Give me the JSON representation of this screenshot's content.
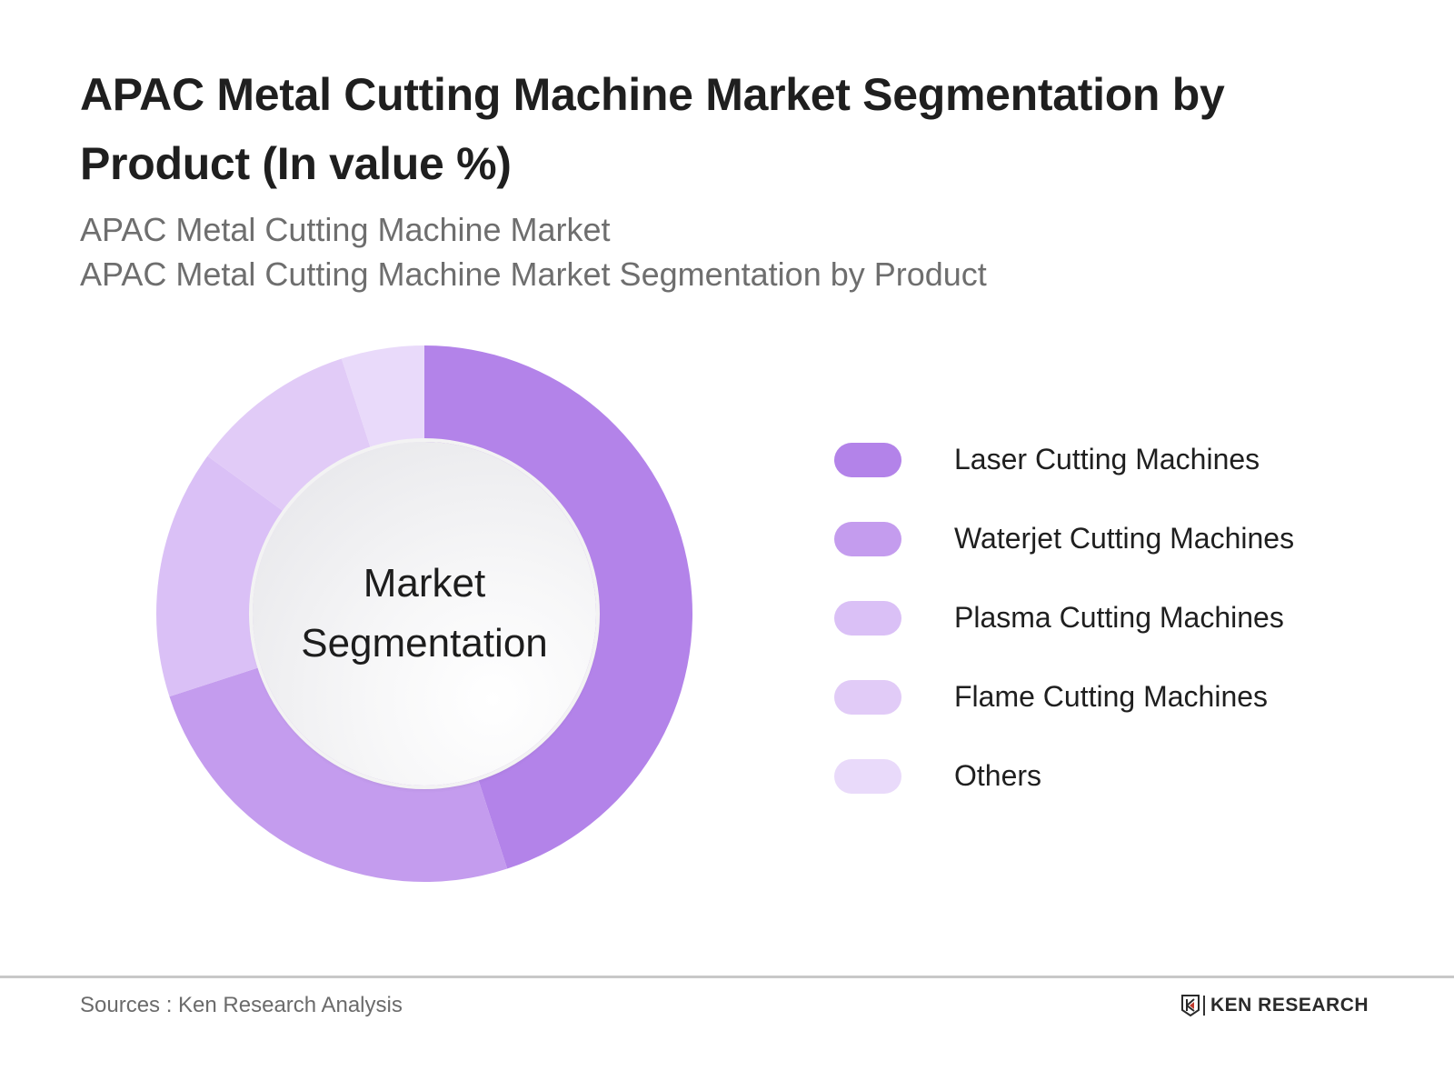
{
  "header": {
    "title": "APAC Metal Cutting Machine Market Segmentation by Product (In value %)",
    "subtitle_1": "APAC Metal Cutting Machine Market",
    "subtitle_2": "APAC Metal Cutting Machine Market Segmentation by Product"
  },
  "donut": {
    "center_label_1": "Market",
    "center_label_2": "Segmentation"
  },
  "legend": {
    "items": [
      {
        "label": "Laser Cutting Machines",
        "color": "#b383e9"
      },
      {
        "label": "Waterjet Cutting Machines",
        "color": "#c49cee"
      },
      {
        "label": "Plasma Cutting Machines",
        "color": "#dac0f6"
      },
      {
        "label": "Flame Cutting Machines",
        "color": "#e1cbf7"
      },
      {
        "label": "Others",
        "color": "#e9dafa"
      }
    ]
  },
  "footer": {
    "source": "Sources : Ken Research Analysis",
    "logo_text": "KEN RESEARCH"
  },
  "chart_data": {
    "type": "pie",
    "variant": "donut",
    "title": "APAC Metal Cutting Machine Market Segmentation by Product (In value %)",
    "subtitle": [
      "APAC Metal Cutting Machine Market",
      "APAC Metal Cutting Machine Market Segmentation by Product"
    ],
    "center_text": "Market Segmentation",
    "categories": [
      "Laser Cutting Machines",
      "Waterjet Cutting Machines",
      "Plasma Cutting Machines",
      "Flame Cutting Machines",
      "Others"
    ],
    "values": [
      45,
      25,
      15,
      10,
      5
    ],
    "colors": [
      "#b383e9",
      "#c49cee",
      "#dac0f6",
      "#e1cbf7",
      "#e9dafa"
    ],
    "start_angle_deg": 0,
    "direction": "clockwise",
    "data_labels": false,
    "legend_position": "right",
    "source": "Sources : Ken Research Analysis"
  }
}
